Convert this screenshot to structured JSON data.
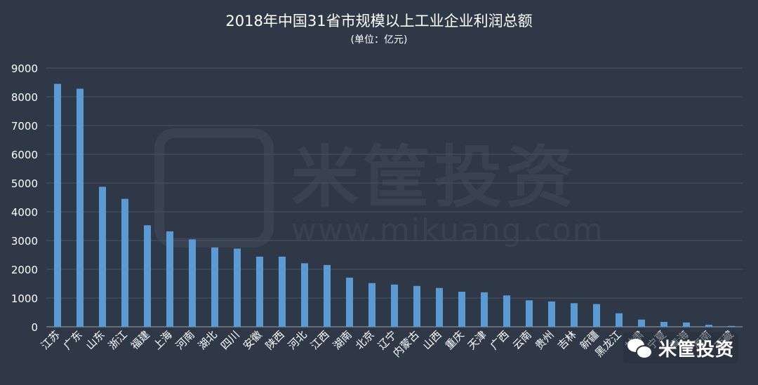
{
  "chart_data": {
    "type": "bar",
    "title": "2018年中国31省市规模以上工业企业利润总额",
    "subtitle": "(单位：亿元)",
    "xlabel": "",
    "ylabel": "",
    "ylim": [
      0,
      9000
    ],
    "yticks": [
      0,
      1000,
      2000,
      3000,
      4000,
      5000,
      6000,
      7000,
      8000,
      9000
    ],
    "grid": true,
    "categories": [
      "江苏",
      "广东",
      "山东",
      "浙江",
      "福建",
      "上海",
      "河南",
      "湖北",
      "四川",
      "安徽",
      "陕西",
      "河北",
      "江西",
      "湖南",
      "北京",
      "辽宁",
      "内蒙古",
      "山西",
      "重庆",
      "天津",
      "广西",
      "云南",
      "贵州",
      "吉林",
      "新疆",
      "黑龙江",
      "甘肃",
      "宁夏",
      "青海",
      "海南",
      "西藏"
    ],
    "values": [
      8450,
      8280,
      4870,
      4450,
      3530,
      3320,
      3040,
      2760,
      2720,
      2440,
      2440,
      2210,
      2150,
      1710,
      1520,
      1470,
      1420,
      1350,
      1220,
      1200,
      1090,
      920,
      880,
      820,
      790,
      470,
      250,
      170,
      150,
      70,
      30
    ],
    "colors": {
      "bar": "#5b9bd5",
      "background": "#2f3847",
      "grid": "#4a5363",
      "text": "#ffffff"
    }
  },
  "watermark": {
    "text": "米筐投资",
    "url": "www.mikuang.com"
  },
  "badge": {
    "icon": "wechat-icon",
    "text": "米筐投资"
  }
}
